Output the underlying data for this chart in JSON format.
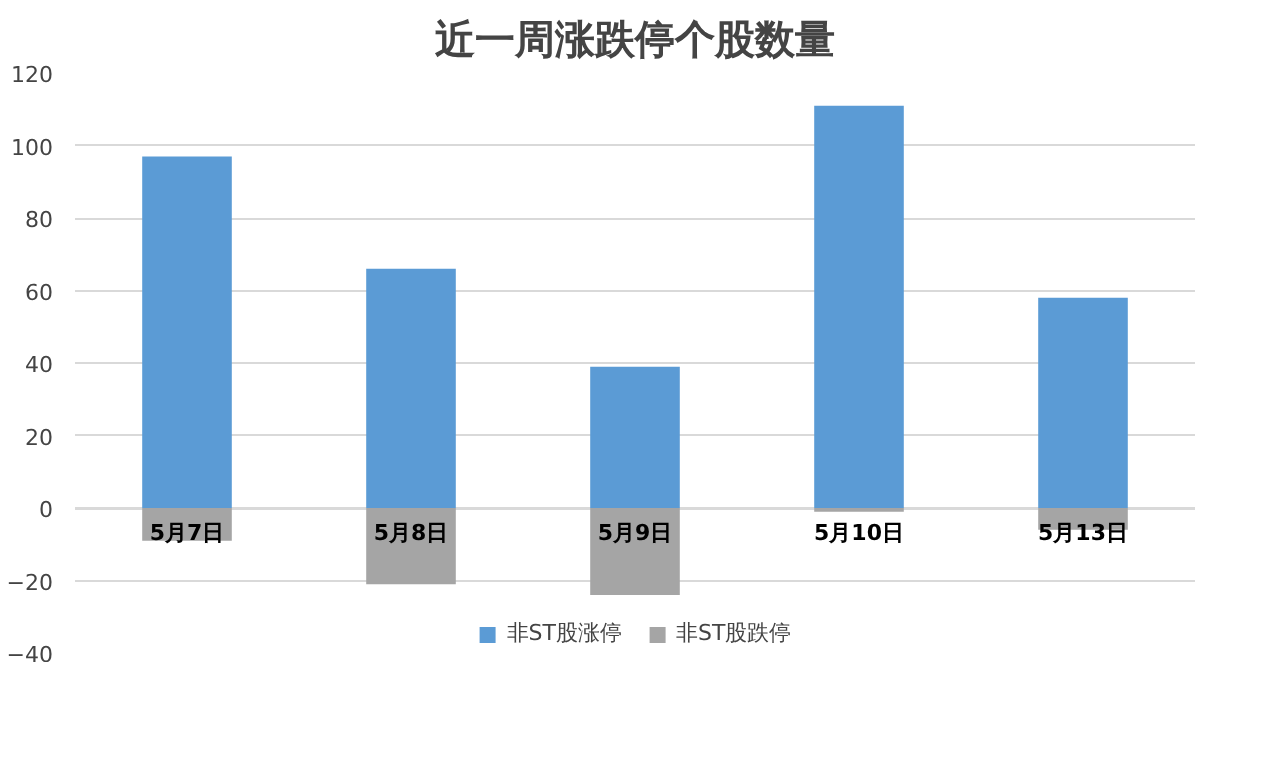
{
  "chart_data": {
    "type": "bar",
    "title": "近一周涨跌停个股数量",
    "categories": [
      "5月7日",
      "5月8日",
      "5月9日",
      "5月10日",
      "5月13日"
    ],
    "stacked": true,
    "series": [
      {
        "name": "非ST股涨停",
        "color": "#5b9bd5",
        "values": [
          97,
          66,
          39,
          111,
          58
        ]
      },
      {
        "name": "非ST股跌停",
        "color": "#a5a5a5",
        "values": [
          -9,
          -21,
          -24,
          -1,
          -6
        ]
      }
    ],
    "ylim": [
      -40,
      120
    ],
    "yticks": [
      -40,
      -20,
      0,
      20,
      40,
      60,
      80,
      100,
      120
    ],
    "grid": "y",
    "legend": "bottom"
  }
}
